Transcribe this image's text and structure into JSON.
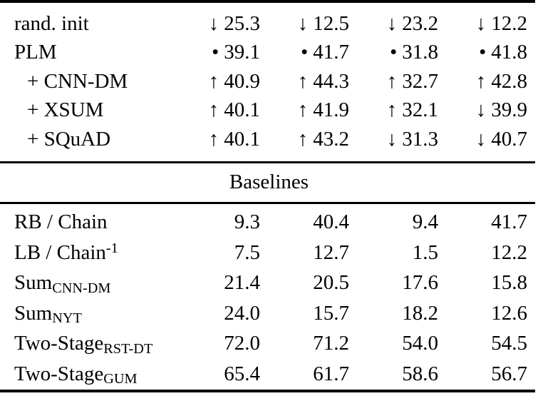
{
  "page": {
    "background_color": "#ffffff",
    "text_color": "#000000"
  },
  "table": {
    "header": "Baselines",
    "pretrain_section": {
      "rows": [
        {
          "label": "rand. init",
          "cells": [
            {
              "marker": "↓",
              "value": "25.3"
            },
            {
              "marker": "↓",
              "value": "12.5"
            },
            {
              "marker": "↓",
              "value": "23.2"
            },
            {
              "marker": "↓",
              "value": "12.2"
            }
          ]
        },
        {
          "label": "PLM",
          "cells": [
            {
              "marker": "•",
              "value": "39.1"
            },
            {
              "marker": "•",
              "value": "41.7"
            },
            {
              "marker": "•",
              "value": "31.8"
            },
            {
              "marker": "•",
              "value": "41.8"
            }
          ]
        },
        {
          "label": "+ CNN-DM",
          "cells": [
            {
              "marker": "↑",
              "value": "40.9"
            },
            {
              "marker": "↑",
              "value": "44.3"
            },
            {
              "marker": "↑",
              "value": "32.7"
            },
            {
              "marker": "↑",
              "value": "42.8"
            }
          ]
        },
        {
          "label": "+ XSUM",
          "cells": [
            {
              "marker": "↑",
              "value": "40.1"
            },
            {
              "marker": "↑",
              "value": "41.9"
            },
            {
              "marker": "↑",
              "value": "32.1"
            },
            {
              "marker": "↓",
              "value": "39.9"
            }
          ]
        },
        {
          "label": "+ SQuAD",
          "cells": [
            {
              "marker": "↑",
              "value": "40.1"
            },
            {
              "marker": "↑",
              "value": "43.2"
            },
            {
              "marker": "↓",
              "value": "31.3"
            },
            {
              "marker": "↓",
              "value": "40.7"
            }
          ]
        }
      ]
    },
    "baselines_section": {
      "rows": [
        {
          "label": "RB / Chain",
          "values": [
            "9.3",
            "40.4",
            "9.4",
            "41.7"
          ]
        },
        {
          "label": "LB / Chain",
          "label_sup": "-1",
          "values": [
            "7.5",
            "12.7",
            "1.5",
            "12.2"
          ]
        },
        {
          "label": "Sum",
          "label_sub": "CNN-DM",
          "values": [
            "21.4",
            "20.5",
            "17.6",
            "15.8"
          ]
        },
        {
          "label": "Sum",
          "label_sub": "NYT",
          "values": [
            "24.0",
            "15.7",
            "18.2",
            "12.6"
          ]
        },
        {
          "label": "Two-Stage",
          "label_sub": "RST-DT",
          "values": [
            "72.0",
            "71.2",
            "54.0",
            "54.5"
          ]
        },
        {
          "label": "Two-Stage",
          "label_sub": "GUM",
          "values": [
            "65.4",
            "61.7",
            "58.6",
            "56.7"
          ]
        }
      ]
    }
  }
}
